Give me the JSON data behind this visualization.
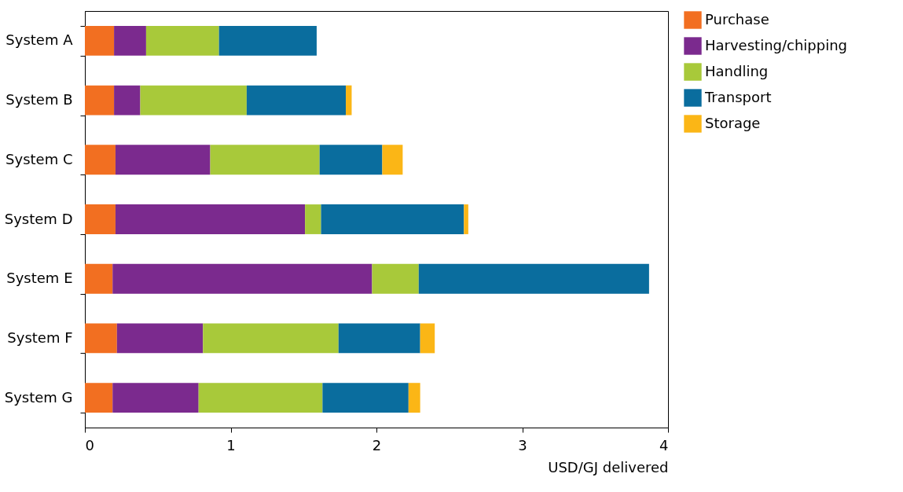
{
  "chart_data": {
    "type": "bar",
    "orientation": "horizontal",
    "stacked": true,
    "xlabel": "USD/GJ delivered",
    "categories": [
      "System A",
      "System B",
      "System C",
      "System D",
      "System E",
      "System F",
      "System G"
    ],
    "series": [
      {
        "name": "Purchase",
        "color": "#f26f21",
        "values": [
          0.2,
          0.2,
          0.21,
          0.21,
          0.19,
          0.22,
          0.19
        ]
      },
      {
        "name": "Harvesting/chipping",
        "color": "#7b2a8e",
        "values": [
          0.22,
          0.18,
          0.65,
          1.3,
          1.78,
          0.59,
          0.59
        ]
      },
      {
        "name": "Handling",
        "color": "#a8c93a",
        "values": [
          0.5,
          0.73,
          0.75,
          0.11,
          0.32,
          0.93,
          0.85
        ]
      },
      {
        "name": "Transport",
        "color": "#0a6d9e",
        "values": [
          0.67,
          0.68,
          0.43,
          0.98,
          1.58,
          0.56,
          0.59
        ]
      },
      {
        "name": "Storage",
        "color": "#fbb616",
        "values": [
          0,
          0.04,
          0.14,
          0.03,
          0,
          0.1,
          0.08
        ]
      }
    ],
    "xlim": [
      0,
      4
    ],
    "xticks": [
      0,
      1,
      2,
      3,
      4
    ],
    "grid": false,
    "legend": "top right"
  }
}
